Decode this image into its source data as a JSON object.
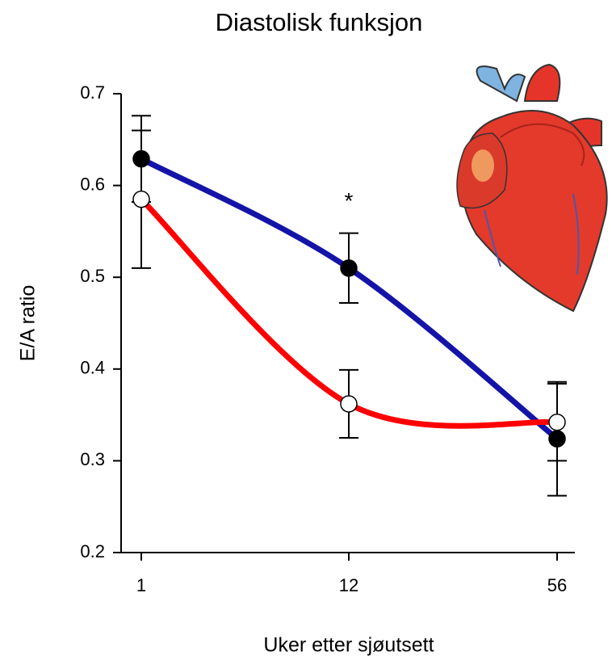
{
  "chart_data": {
    "type": "line",
    "title": "Diastolisk funksjon",
    "x_label": "Uker etter sjøutsett",
    "y_label": "E/A ratio",
    "categories": [
      "1",
      "12",
      "56"
    ],
    "series": [
      {
        "color": "#1414a8",
        "marker_color": "#000000",
        "values": [
          0.629,
          0.51,
          0.324
        ],
        "errors": [
          0.047,
          0.038,
          0.062
        ]
      },
      {
        "color": "#ff0000",
        "marker_color": "#ffffff",
        "values": [
          0.585,
          0.362,
          0.342
        ],
        "errors": [
          0.075,
          0.037,
          0.042
        ]
      }
    ],
    "annotation": "*",
    "ylim": [
      0.2,
      0.7
    ],
    "yticks": [
      0.2,
      0.3,
      0.4,
      0.5,
      0.6,
      0.7
    ]
  }
}
